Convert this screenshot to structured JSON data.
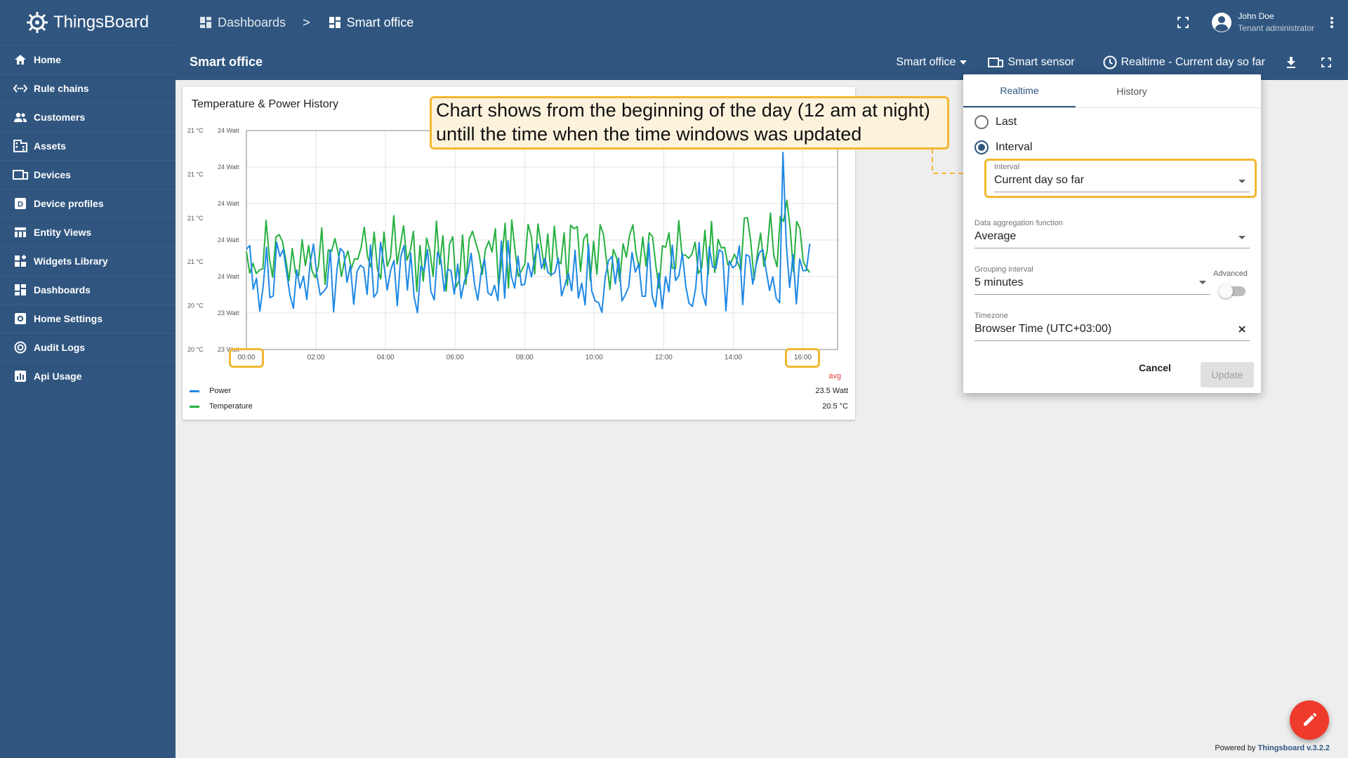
{
  "app": {
    "name": "ThingsBoard"
  },
  "sidebar": {
    "items": [
      {
        "label": "Home",
        "icon": "home-icon"
      },
      {
        "label": "Rule chains",
        "icon": "rule-chains-icon"
      },
      {
        "label": "Customers",
        "icon": "customers-icon"
      },
      {
        "label": "Assets",
        "icon": "assets-icon"
      },
      {
        "label": "Devices",
        "icon": "devices-icon"
      },
      {
        "label": "Device profiles",
        "icon": "device-profiles-icon"
      },
      {
        "label": "Entity Views",
        "icon": "entity-views-icon"
      },
      {
        "label": "Widgets Library",
        "icon": "widgets-icon"
      },
      {
        "label": "Dashboards",
        "icon": "dashboards-icon"
      },
      {
        "label": "Home Settings",
        "icon": "settings-icon"
      },
      {
        "label": "Audit Logs",
        "icon": "audit-icon"
      },
      {
        "label": "Api Usage",
        "icon": "api-usage-icon"
      }
    ]
  },
  "topbar": {
    "breadcrumb": [
      "Dashboards",
      "Smart office"
    ],
    "separator": ">",
    "user_name": "John Doe",
    "user_role": "Tenant administrator"
  },
  "dashboard": {
    "title": "Smart office",
    "state_select": "Smart office",
    "entity_alias": "Smart sensor",
    "timewindow": "Realtime - Current day so far"
  },
  "widget": {
    "title": "Temperature & Power History",
    "legend_header": "avg",
    "legend": [
      {
        "name": "Power",
        "value": "23.5 Watt",
        "color": "#1e88e5"
      },
      {
        "name": "Temperature",
        "value": "20.5 °C",
        "color": "#27b041"
      }
    ]
  },
  "chart_data": {
    "type": "line",
    "title": "Temperature & Power History",
    "x_ticks": [
      "00:00",
      "02:00",
      "04:00",
      "06:00",
      "08:00",
      "10:00",
      "12:00",
      "14:00",
      "16:00"
    ],
    "x_range_hours": [
      0,
      17
    ],
    "y_left_ticks": [
      "21 °C",
      "21 °C",
      "21 °C",
      "21 °C",
      "20 °C",
      "20 °C"
    ],
    "y_right_ticks": [
      "24 Watt",
      "24 Watt",
      "24 Watt",
      "24 Watt",
      "24 Watt",
      "23 Watt",
      "23 Watt"
    ],
    "y_range_norm": [
      0,
      6
    ],
    "grid": true,
    "series": [
      {
        "name": "Power",
        "color": "#1e88e5",
        "values": [
          2.75,
          2.85,
          1.65,
          1.95,
          1.05,
          1.74,
          2.8,
          1.42,
          1.47,
          2.94,
          2.55,
          2.74,
          2.11,
          1.48,
          1.13,
          2.18,
          1.68,
          2.01,
          1.37,
          2.36,
          2.89,
          2.04,
          1.49,
          1.59,
          1.71,
          2.73,
          1.03,
          2.21,
          2.77,
          2.67,
          1.84,
          2.31,
          1.24,
          2.14,
          2.31,
          2.23,
          1.51,
          2.87,
          1.43,
          1.57,
          2.94,
          2.33,
          1.63,
          2.17,
          2.44,
          1.2,
          2.54,
          2.85,
          1.63,
          2.64,
          1.45,
          1.01,
          2.28,
          2.16,
          2.74,
          1.6,
          1.36,
          2.67,
          2.46,
          1.6,
          2.2,
          2.16,
          1.52,
          2.34,
          1.41,
          1.87,
          2.09,
          2.64,
          1.8,
          1.35,
          2.11,
          2.48,
          1.56,
          1.48,
          1.76,
          1.34,
          2.97,
          1.41,
          2.98,
          2.01,
          1.68,
          2.56,
          1.76,
          1.79,
          2.37,
          1.99,
          2.54,
          2.89,
          2.22,
          2.5,
          2.1,
          2.05,
          2.11,
          2.5,
          1.47,
          1.77,
          2.09,
          1.61,
          2.72,
          1.41,
          1.82,
          1.22,
          2.88,
          1.6,
          1.33,
          1.29,
          1.02,
          1.98,
          2.44,
          2.55,
          1.8,
          2.51,
          1.33,
          1.5,
          1.72,
          2.66,
          2.12,
          2.35,
          1.46,
          1.46,
          2.92,
          1.47,
          1.17,
          2.09,
          1.12,
          2.0,
          1.58,
          2.86,
          1.89,
          2.03,
          2.64,
          1.74,
          1.27,
          1.18,
          1.7,
          2.93,
          1.55,
          1.21,
          2.81,
          2.27,
          2.22,
          2.73,
          2.67,
          1.06,
          2.43,
          2.24,
          2.31,
          2.84,
          1.23,
          2.6,
          2.55,
          1.79,
          2.32,
          2.66,
          2.74,
          2.16,
          1.62,
          1.99,
          1.41,
          1.28,
          5.4,
          2.9,
          1.7,
          2.6,
          1.25,
          2.48,
          2.16,
          2.17,
          2.9
        ]
      },
      {
        "name": "Temperature",
        "color": "#27b041",
        "values": [
          2.68,
          2.09,
          2.36,
          2.08,
          2.18,
          2.21,
          3.54,
          2.51,
          1.98,
          3.08,
          3.15,
          2.96,
          2.47,
          1.88,
          2.77,
          2.08,
          2.03,
          3.01,
          2.3,
          2.85,
          2.16,
          1.97,
          2.28,
          3.33,
          1.78,
          2.73,
          2.69,
          3.04,
          2.66,
          2.0,
          2.45,
          2.7,
          2.21,
          2.48,
          2.48,
          2.79,
          3.35,
          2.54,
          2.26,
          3.22,
          2.2,
          1.93,
          3.22,
          2.28,
          2.53,
          3.67,
          2.34,
          2.87,
          3.39,
          2.45,
          2.69,
          3.24,
          1.59,
          2.85,
          1.87,
          3.05,
          2.72,
          2.0,
          3.52,
          2.33,
          3.12,
          1.6,
          2.88,
          3.09,
          1.71,
          1.9,
          3.14,
          1.78,
          3.02,
          3.24,
          2.94,
          2.63,
          2.06,
          2.75,
          2.97,
          2.67,
          3.31,
          1.71,
          2.51,
          3.46,
          1.68,
          3.55,
          2.74,
          2.0,
          2.17,
          2.34,
          3.43,
          3.09,
          2.07,
          3.44,
          2.85,
          2.2,
          3.17,
          2.02,
          3.38,
          2.45,
          2.35,
          3.2,
          1.76,
          3.41,
          3.31,
          3.37,
          2.14,
          3.03,
          3.17,
          1.88,
          2.97,
          2.06,
          3.42,
          3.15,
          2.4,
          1.65,
          2.74,
          2.52,
          1.87,
          2.9,
          2.53,
          3.14,
          3.42,
          2.63,
          2.21,
          3.08,
          2.29,
          3.2,
          3.09,
          2.3,
          1.68,
          2.84,
          2.8,
          3.2,
          2.23,
          2.22,
          3.53,
          2.58,
          2.59,
          2.5,
          2.61,
          2.94,
          2.08,
          2.23,
          3.27,
          2.06,
          3.51,
          2.11,
          3.02,
          2.78,
          2.8,
          2.32,
          2.39,
          2.61,
          2.39,
          2.15,
          3.6,
          3.61,
          2.94,
          1.92,
          2.62,
          3.19,
          2.28,
          2.71,
          3.74,
          2.58,
          2.27,
          3.65,
          3.51,
          4.09,
          3.34,
          2.13,
          3.51,
          3.31,
          2.42,
          2.23,
          2.11
        ]
      }
    ]
  },
  "annotation": {
    "callout_line1": "Chart shows from the beginning of the day (12 am at night)",
    "callout_line2": "untill the time when the time windows was updated"
  },
  "timewindow_popup": {
    "tabs": [
      "Realtime",
      "History"
    ],
    "active_tab": "Realtime",
    "option_last": "Last",
    "option_interval": "Interval",
    "selected_option": "Interval",
    "interval_label": "Interval",
    "interval_value": "Current day so far",
    "aggregation_label": "Data aggregation function",
    "aggregation_value": "Average",
    "grouping_label": "Grouping interval",
    "grouping_value": "5 minutes",
    "advanced_label": "Advanced",
    "timezone_label": "Timezone",
    "timezone_value": "Browser Time (UTC+03:00)",
    "cancel_label": "Cancel",
    "update_label": "Update"
  },
  "footer": {
    "powered_by": "Powered by",
    "powered_link": "Thingsboard v.3.2.2"
  },
  "colors": {
    "primary": "#305680",
    "accent_fab": "#ef3b2c",
    "highlight": "#f2b830",
    "power_series": "#1e88e5",
    "temperature_series": "#27b041"
  }
}
